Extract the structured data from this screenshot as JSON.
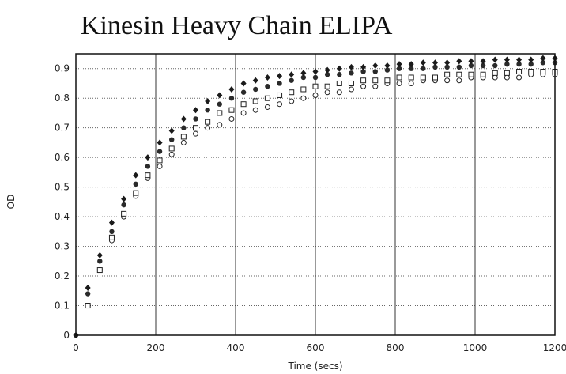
{
  "chart_data": {
    "type": "scatter",
    "title": "Kinesin Heavy Chain ELIPA",
    "xlabel": "Time (secs)",
    "ylabel": "OD",
    "xlim": [
      0,
      1200
    ],
    "ylim": [
      0,
      0.95
    ],
    "x_ticks": [
      "0",
      "200",
      "400",
      "600",
      "800",
      "1000",
      "1200"
    ],
    "y_ticks": [
      "0",
      "0.1",
      "0.2",
      "0.3",
      "0.4",
      "0.5",
      "0.6",
      "0.7",
      "0.8",
      "0.9"
    ],
    "grid": true,
    "series": [
      {
        "marker": "filled-diamond",
        "x": [
          0,
          30,
          60,
          90,
          120,
          150,
          180,
          210,
          240,
          270,
          300,
          330,
          360,
          390,
          420,
          450,
          480,
          510,
          540,
          570,
          600,
          630,
          660,
          690,
          720,
          750,
          780,
          810,
          840,
          870,
          900,
          930,
          960,
          990,
          1020,
          1050,
          1080,
          1110,
          1140,
          1170,
          1200
        ],
        "y": [
          0,
          0.16,
          0.27,
          0.38,
          0.46,
          0.54,
          0.6,
          0.65,
          0.69,
          0.73,
          0.76,
          0.79,
          0.81,
          0.83,
          0.85,
          0.86,
          0.87,
          0.875,
          0.88,
          0.885,
          0.89,
          0.895,
          0.9,
          0.905,
          0.905,
          0.91,
          0.91,
          0.915,
          0.915,
          0.92,
          0.92,
          0.92,
          0.925,
          0.925,
          0.925,
          0.93,
          0.93,
          0.93,
          0.93,
          0.935,
          0.935
        ]
      },
      {
        "marker": "filled-circle",
        "x": [
          0,
          30,
          60,
          90,
          120,
          150,
          180,
          210,
          240,
          270,
          300,
          330,
          360,
          390,
          420,
          450,
          480,
          510,
          540,
          570,
          600,
          630,
          660,
          690,
          720,
          750,
          780,
          810,
          840,
          870,
          900,
          930,
          960,
          990,
          1020,
          1050,
          1080,
          1110,
          1140,
          1170,
          1200
        ],
        "y": [
          0,
          0.14,
          0.25,
          0.35,
          0.44,
          0.51,
          0.57,
          0.62,
          0.66,
          0.7,
          0.73,
          0.76,
          0.78,
          0.8,
          0.82,
          0.83,
          0.84,
          0.85,
          0.86,
          0.87,
          0.87,
          0.88,
          0.88,
          0.885,
          0.89,
          0.89,
          0.895,
          0.9,
          0.9,
          0.9,
          0.905,
          0.905,
          0.905,
          0.91,
          0.91,
          0.91,
          0.915,
          0.915,
          0.915,
          0.92,
          0.92
        ]
      },
      {
        "marker": "open-square",
        "x": [
          30,
          60,
          90,
          120,
          150,
          180,
          210,
          240,
          270,
          300,
          330,
          360,
          390,
          420,
          450,
          480,
          510,
          540,
          570,
          600,
          630,
          660,
          690,
          720,
          750,
          780,
          810,
          840,
          870,
          900,
          930,
          960,
          990,
          1020,
          1050,
          1080,
          1110,
          1140,
          1170,
          1200
        ],
        "y": [
          0.1,
          0.22,
          0.33,
          0.41,
          0.48,
          0.54,
          0.59,
          0.63,
          0.67,
          0.7,
          0.72,
          0.75,
          0.76,
          0.78,
          0.79,
          0.8,
          0.81,
          0.82,
          0.83,
          0.84,
          0.84,
          0.85,
          0.85,
          0.86,
          0.86,
          0.86,
          0.87,
          0.87,
          0.87,
          0.87,
          0.88,
          0.88,
          0.88,
          0.88,
          0.885,
          0.885,
          0.89,
          0.89,
          0.89,
          0.89
        ]
      },
      {
        "marker": "open-circle",
        "x": [
          30,
          60,
          90,
          120,
          150,
          180,
          210,
          240,
          270,
          300,
          330,
          360,
          390,
          420,
          450,
          480,
          510,
          540,
          570,
          600,
          630,
          660,
          690,
          720,
          750,
          780,
          810,
          840,
          870,
          900,
          930,
          960,
          990,
          1020,
          1050,
          1080,
          1110,
          1140,
          1170,
          1200
        ],
        "y": [
          0.1,
          0.22,
          0.32,
          0.4,
          0.47,
          0.53,
          0.57,
          0.61,
          0.65,
          0.68,
          0.7,
          0.71,
          0.73,
          0.75,
          0.76,
          0.77,
          0.78,
          0.79,
          0.8,
          0.81,
          0.82,
          0.82,
          0.83,
          0.84,
          0.84,
          0.85,
          0.85,
          0.85,
          0.86,
          0.86,
          0.86,
          0.86,
          0.87,
          0.87,
          0.87,
          0.87,
          0.87,
          0.88,
          0.88,
          0.88
        ]
      }
    ]
  }
}
